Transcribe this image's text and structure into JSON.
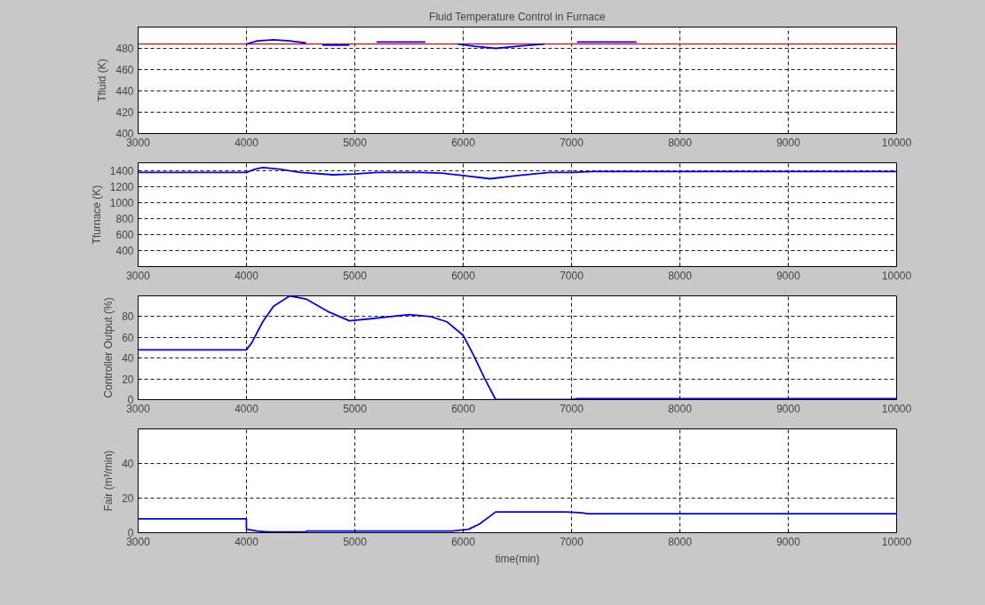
{
  "chart_data": [
    {
      "type": "line",
      "title": "Fluid Temperature Control in Furnace",
      "ylabel": "Tfluid (K)",
      "xlim": [
        3000,
        10000
      ],
      "xticks": [
        3000,
        4000,
        5000,
        6000,
        7000,
        8000,
        9000,
        10000
      ],
      "ylim": [
        400,
        500
      ],
      "yticks": [
        400,
        420,
        440,
        460,
        480
      ],
      "grid": true,
      "ref_lines": [
        {
          "axis": "y",
          "value": 484,
          "color": "#ff0000"
        }
      ],
      "series": [
        {
          "color": "#0000ff",
          "x": [
            4000,
            4100,
            4250,
            4400,
            4550,
            4650,
            4700,
            4800,
            4950,
            5000,
            5200,
            5400,
            5650,
            5800,
            5950,
            6100,
            6300,
            6500,
            6750,
            6900,
            7050,
            7300,
            7600
          ],
          "values": [
            484,
            487,
            488,
            487,
            485,
            null,
            483,
            483,
            483,
            null,
            486,
            486,
            486,
            null,
            484,
            482,
            480,
            482,
            484,
            null,
            486,
            486,
            486
          ]
        }
      ]
    },
    {
      "type": "line",
      "ylabel": "Tfurnace (K)",
      "xlim": [
        3000,
        10000
      ],
      "xticks": [
        3000,
        4000,
        5000,
        6000,
        7000,
        8000,
        9000,
        10000
      ],
      "ylim": [
        200,
        1500
      ],
      "yticks": [
        400,
        600,
        800,
        1000,
        1200,
        1400
      ],
      "grid": true,
      "series": [
        {
          "color": "#0000ff",
          "x": [
            3000,
            4000,
            4080,
            4150,
            4300,
            4500,
            4800,
            5000,
            5200,
            5600,
            5800,
            6000,
            6250,
            6500,
            6800,
            7000,
            7200,
            10000
          ],
          "values": [
            1380,
            1380,
            1420,
            1440,
            1420,
            1380,
            1350,
            1360,
            1380,
            1380,
            1370,
            1340,
            1300,
            1340,
            1380,
            1380,
            1390,
            1390
          ]
        }
      ]
    },
    {
      "type": "line",
      "ylabel": "Controller Output (%)",
      "xlim": [
        3000,
        10000
      ],
      "xticks": [
        3000,
        4000,
        5000,
        6000,
        7000,
        8000,
        9000,
        10000
      ],
      "ylim": [
        0,
        100
      ],
      "yticks": [
        0,
        20,
        40,
        60,
        80
      ],
      "grid": true,
      "series": [
        {
          "color": "#0000ff",
          "x": [
            3000,
            4000,
            4050,
            4150,
            4250,
            4400,
            4550,
            4750,
            4950,
            5150,
            5500,
            5700,
            5850,
            6000,
            6100,
            6200,
            6300,
            7000,
            7050,
            10000
          ],
          "values": [
            48,
            48,
            55,
            75,
            90,
            100,
            97,
            85,
            76,
            78,
            82,
            80,
            75,
            62,
            42,
            20,
            0,
            0,
            1,
            1
          ]
        }
      ]
    },
    {
      "type": "line",
      "ylabel": "Fair (m³/min)",
      "xlabel": "time(min)",
      "xlim": [
        3000,
        10000
      ],
      "xticks": [
        3000,
        4000,
        5000,
        6000,
        7000,
        8000,
        9000,
        10000
      ],
      "ylim": [
        0,
        60
      ],
      "yticks": [
        0,
        20,
        40
      ],
      "grid": true,
      "series": [
        {
          "color": "#0000ff",
          "x": [
            3000,
            3999,
            4000,
            4100,
            4200,
            4550,
            4560,
            5900,
            6050,
            6150,
            6300,
            6950,
            7100,
            7150,
            10000
          ],
          "values": [
            8,
            8,
            2,
            1,
            0.5,
            0.5,
            1,
            1,
            2,
            5,
            12,
            12,
            11.5,
            11,
            11
          ]
        }
      ]
    }
  ]
}
